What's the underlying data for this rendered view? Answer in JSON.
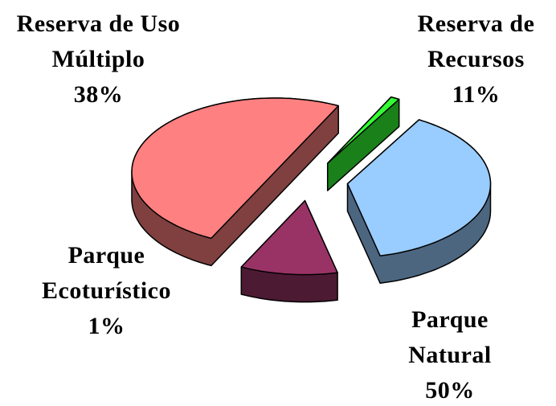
{
  "chart_data": {
    "type": "pie3d",
    "categories": [
      "Reserva de Uso Múltiplo",
      "Reserva de Recursos",
      "Parque Natural",
      "Parque Ecoturístico"
    ],
    "values": [
      38,
      11,
      50,
      1
    ],
    "value_labels": [
      "38%",
      "11%",
      "50%",
      "1%"
    ],
    "colors": [
      "#99ccff",
      "#993366",
      "#ff8080",
      "#33ff33"
    ]
  }
}
